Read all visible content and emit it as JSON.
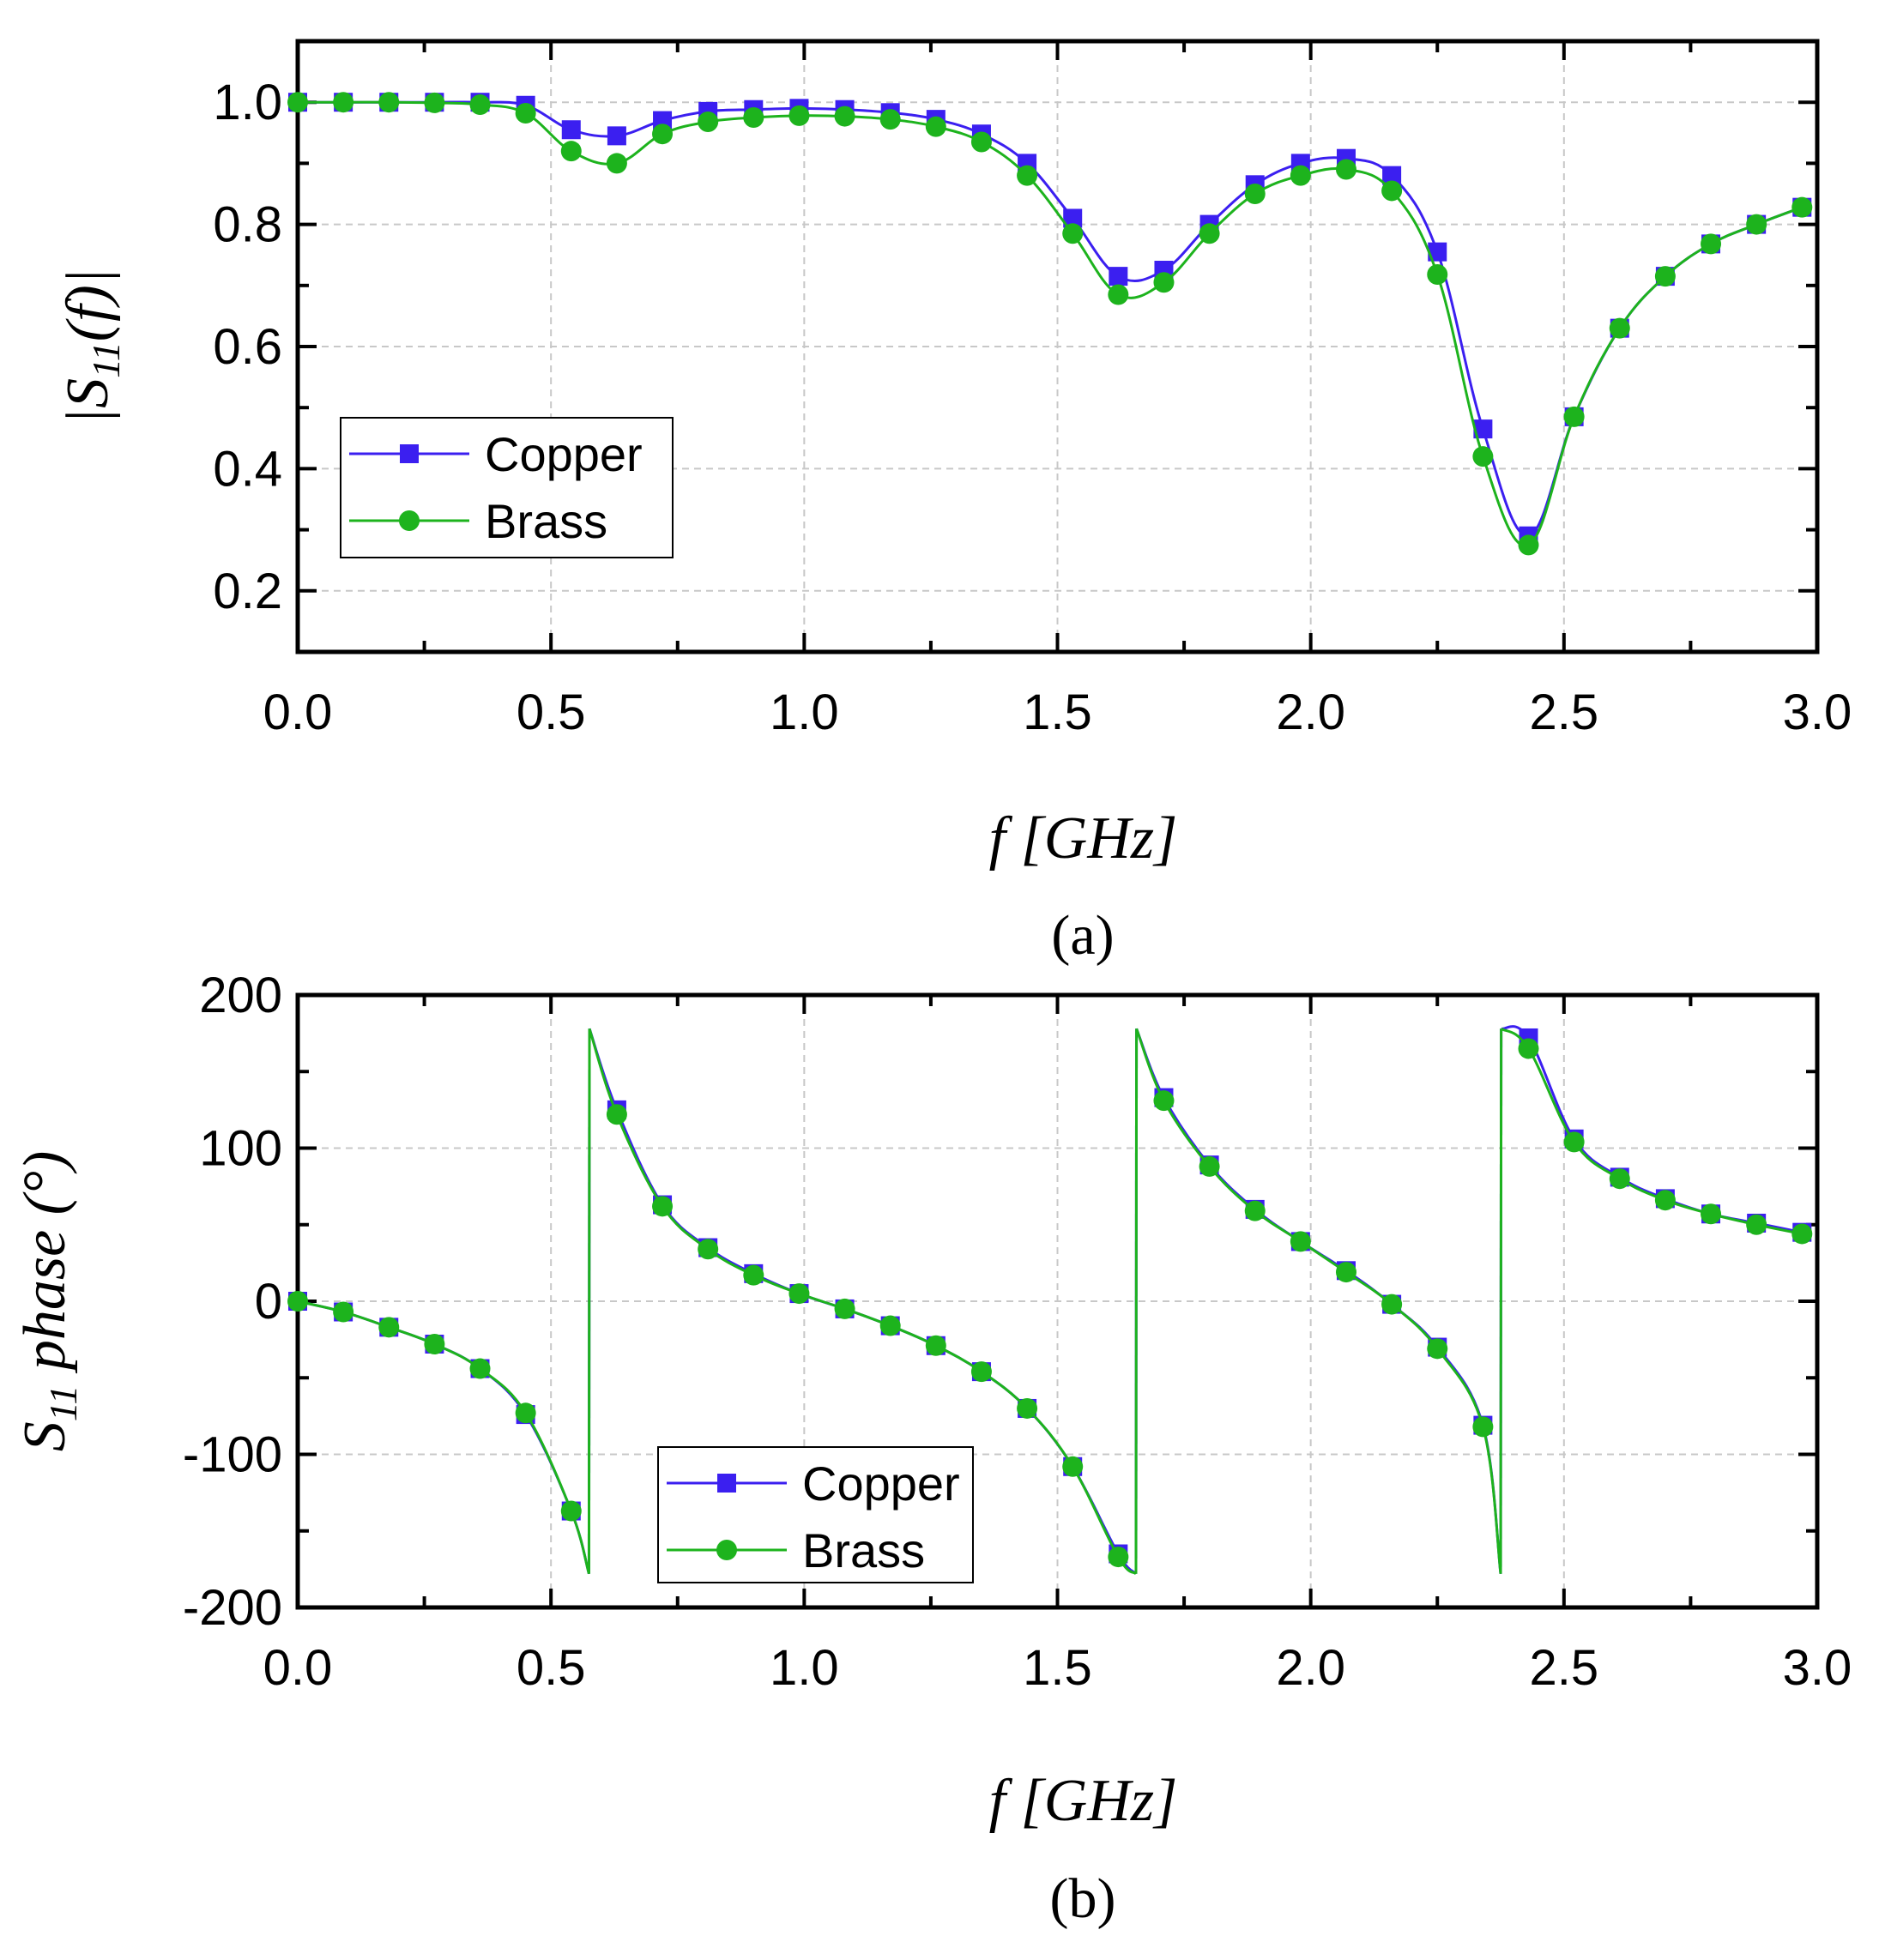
{
  "chart_data": [
    {
      "type": "line",
      "caption": "(a)",
      "xlabel": "f [GHz]",
      "ylabel": "|S11(f)|",
      "ylabel_main": "|S",
      "ylabel_sub": "11",
      "ylabel_tail": "(f)|",
      "xlim": [
        0,
        3.0
      ],
      "ylim": [
        0.1,
        1.1
      ],
      "x_ticks": [
        0.0,
        0.5,
        1.0,
        1.5,
        2.0,
        2.5,
        3.0
      ],
      "x_tick_labels": [
        "0.0",
        "0.5",
        "1.0",
        "1.5",
        "2.0",
        "2.5",
        "3.0"
      ],
      "y_ticks": [
        0.2,
        0.4,
        0.6,
        0.8,
        1.0
      ],
      "y_tick_labels": [
        "0.2",
        "0.4",
        "0.6",
        "0.8",
        "1.0"
      ],
      "grid": true,
      "legend_position": "center-left",
      "series": [
        {
          "name": "Copper",
          "color": "#3b1ff0",
          "marker": "square",
          "x": [
            0,
            0.09,
            0.18,
            0.27,
            0.36,
            0.45,
            0.54,
            0.63,
            0.72,
            0.81,
            0.9,
            0.99,
            1.08,
            1.17,
            1.26,
            1.35,
            1.44,
            1.53,
            1.62,
            1.71,
            1.8,
            1.89,
            1.98,
            2.07,
            2.16,
            2.25,
            2.34,
            2.43,
            2.52,
            2.61,
            2.7,
            2.79,
            2.88,
            2.97
          ],
          "values": [
            1.0,
            1.0,
            1.0,
            1.0,
            1.0,
            0.995,
            0.955,
            0.945,
            0.97,
            0.985,
            0.988,
            0.99,
            0.988,
            0.983,
            0.972,
            0.948,
            0.9,
            0.81,
            0.715,
            0.725,
            0.8,
            0.865,
            0.9,
            0.908,
            0.88,
            0.755,
            0.465,
            0.29,
            0.485,
            0.63,
            0.715,
            0.768,
            0.8,
            0.828
          ]
        },
        {
          "name": "Brass",
          "color": "#1db31d",
          "marker": "circle",
          "x": [
            0,
            0.09,
            0.18,
            0.27,
            0.36,
            0.45,
            0.54,
            0.63,
            0.72,
            0.81,
            0.9,
            0.99,
            1.08,
            1.17,
            1.26,
            1.35,
            1.44,
            1.53,
            1.62,
            1.71,
            1.8,
            1.89,
            1.98,
            2.07,
            2.16,
            2.25,
            2.34,
            2.43,
            2.52,
            2.61,
            2.7,
            2.79,
            2.88,
            2.97
          ],
          "values": [
            1.0,
            1.0,
            1.0,
            0.999,
            0.996,
            0.982,
            0.92,
            0.9,
            0.948,
            0.968,
            0.975,
            0.978,
            0.977,
            0.972,
            0.96,
            0.935,
            0.88,
            0.785,
            0.685,
            0.705,
            0.785,
            0.85,
            0.88,
            0.89,
            0.855,
            0.718,
            0.42,
            0.275,
            0.485,
            0.63,
            0.715,
            0.768,
            0.8,
            0.828
          ]
        }
      ]
    },
    {
      "type": "line",
      "caption": "(b)",
      "xlabel": "f [GHz]",
      "ylabel": "S11 phase (°)",
      "ylabel_main": "S",
      "ylabel_sub": "11",
      "ylabel_tail": " phase (°)",
      "xlim": [
        0,
        3.0
      ],
      "ylim": [
        -200,
        200
      ],
      "x_ticks": [
        0.0,
        0.5,
        1.0,
        1.5,
        2.0,
        2.5,
        3.0
      ],
      "x_tick_labels": [
        "0.0",
        "0.5",
        "1.0",
        "1.5",
        "2.0",
        "2.5",
        "3.0"
      ],
      "y_ticks": [
        -200,
        -100,
        0,
        100,
        200
      ],
      "y_tick_labels": [
        "-200",
        "-100",
        "0",
        "100",
        "200"
      ],
      "grid": true,
      "legend_position": "bottom-center",
      "series": [
        {
          "name": "Copper",
          "color": "#3b1ff0",
          "marker": "square",
          "x": [
            0,
            0.09,
            0.18,
            0.27,
            0.36,
            0.45,
            0.54,
            0.63,
            0.72,
            0.81,
            0.9,
            0.99,
            1.08,
            1.17,
            1.26,
            1.35,
            1.44,
            1.53,
            1.62,
            1.71,
            1.8,
            1.89,
            1.98,
            2.07,
            2.16,
            2.25,
            2.34,
            2.43,
            2.52,
            2.61,
            2.7,
            2.79,
            2.88,
            2.97
          ],
          "values": [
            0,
            -7,
            -17,
            -28,
            -44,
            -74,
            -137,
            125,
            63,
            35,
            18,
            5,
            -5,
            -16,
            -29,
            -46,
            -70,
            -108,
            -165,
            133,
            89,
            60,
            39,
            20,
            -2,
            -30,
            -81,
            172,
            106,
            81,
            67,
            57,
            51,
            45
          ]
        },
        {
          "name": "Brass",
          "color": "#1db31d",
          "marker": "circle",
          "x": [
            0,
            0.09,
            0.18,
            0.27,
            0.36,
            0.45,
            0.54,
            0.63,
            0.72,
            0.81,
            0.9,
            0.99,
            1.08,
            1.17,
            1.26,
            1.35,
            1.44,
            1.53,
            1.62,
            1.71,
            1.8,
            1.89,
            1.98,
            2.07,
            2.16,
            2.25,
            2.34,
            2.43,
            2.52,
            2.61,
            2.7,
            2.79,
            2.88,
            2.97
          ],
          "values": [
            0,
            -7,
            -17,
            -28,
            -44,
            -73,
            -137,
            122,
            62,
            34,
            17,
            5,
            -5,
            -16,
            -29,
            -46,
            -70,
            -108,
            -167,
            131,
            88,
            59,
            39,
            19,
            -2,
            -31,
            -82,
            165,
            104,
            80,
            66,
            57,
            50,
            44
          ]
        }
      ]
    }
  ]
}
